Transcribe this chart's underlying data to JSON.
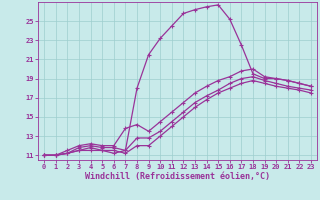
{
  "xlabel": "Windchill (Refroidissement éolien,°C)",
  "bg_color": "#c8eaea",
  "line_color": "#993399",
  "grid_color": "#9ecece",
  "xlim": [
    -0.5,
    23.5
  ],
  "ylim": [
    10.5,
    27.0
  ],
  "xticks": [
    0,
    1,
    2,
    3,
    4,
    5,
    6,
    7,
    8,
    9,
    10,
    11,
    12,
    13,
    14,
    15,
    16,
    17,
    18,
    19,
    20,
    21,
    22,
    23
  ],
  "yticks": [
    11,
    13,
    15,
    17,
    19,
    21,
    23,
    25
  ],
  "line1_x": [
    0,
    1,
    2,
    3,
    4,
    5,
    6,
    7,
    8,
    9,
    10,
    11,
    12,
    13,
    14,
    15,
    16,
    17,
    18,
    19,
    20,
    21,
    22,
    23
  ],
  "line1_y": [
    11,
    11,
    11.2,
    11.5,
    11.5,
    11.5,
    11.2,
    11.5,
    18.0,
    21.5,
    23.2,
    24.5,
    25.8,
    26.2,
    26.5,
    26.7,
    25.2,
    22.5,
    19.5,
    19.0,
    19.0,
    18.8,
    18.5,
    18.2
  ],
  "line2_x": [
    0,
    1,
    2,
    3,
    4,
    5,
    6,
    7,
    8,
    9,
    10,
    11,
    12,
    13,
    14,
    15,
    16,
    17,
    18,
    19,
    20,
    21,
    22,
    23
  ],
  "line2_y": [
    11,
    11,
    11.5,
    12.0,
    12.2,
    12.0,
    12.0,
    13.8,
    14.2,
    13.5,
    14.5,
    15.5,
    16.5,
    17.5,
    18.2,
    18.8,
    19.2,
    19.8,
    20.0,
    19.2,
    19.0,
    18.8,
    18.5,
    18.2
  ],
  "line3_x": [
    0,
    1,
    2,
    3,
    4,
    5,
    6,
    7,
    8,
    9,
    10,
    11,
    12,
    13,
    14,
    15,
    16,
    17,
    18,
    19,
    20,
    21,
    22,
    23
  ],
  "line3_y": [
    11,
    11,
    11.2,
    11.8,
    12.0,
    11.8,
    11.8,
    11.5,
    12.8,
    12.8,
    13.5,
    14.5,
    15.5,
    16.5,
    17.2,
    17.8,
    18.5,
    19.0,
    19.2,
    18.8,
    18.5,
    18.2,
    18.0,
    17.8
  ],
  "line4_x": [
    0,
    1,
    2,
    3,
    4,
    5,
    6,
    7,
    8,
    9,
    10,
    11,
    12,
    13,
    14,
    15,
    16,
    17,
    18,
    19,
    20,
    21,
    22,
    23
  ],
  "line4_y": [
    11,
    11,
    11.2,
    11.5,
    11.8,
    11.5,
    11.5,
    11.2,
    12.0,
    12.0,
    13.0,
    14.0,
    15.0,
    16.0,
    16.8,
    17.5,
    18.0,
    18.5,
    18.8,
    18.5,
    18.2,
    18.0,
    17.8,
    17.5
  ],
  "marker": "+",
  "markersize": 3,
  "linewidth": 0.9,
  "tick_fontsize": 5,
  "xlabel_fontsize": 6
}
